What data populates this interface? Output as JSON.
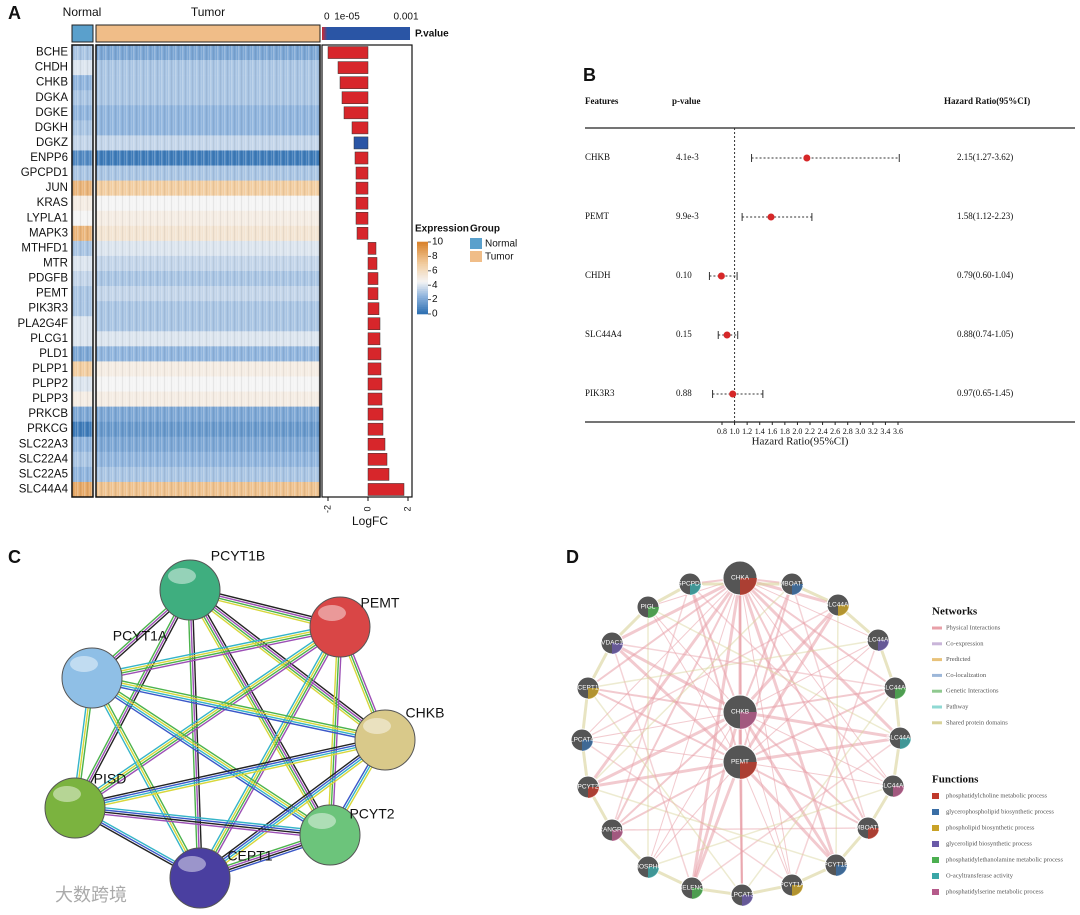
{
  "panel_a": {
    "letter": "A",
    "group_labels": [
      "Normal",
      "Tumor"
    ],
    "genes": [
      "BCHE",
      "CHDH",
      "CHKB",
      "DGKA",
      "DGKE",
      "DGKH",
      "DGKZ",
      "ENPP6",
      "GPCPD1",
      "JUN",
      "KRAS",
      "LYPLA1",
      "MAPK3",
      "MTHFD1",
      "MTR",
      "PDGFB",
      "PEMT",
      "PIK3R3",
      "PLA2G4F",
      "PLCG1",
      "PLD1",
      "PLPP1",
      "PLPP2",
      "PLPP3",
      "PRKCB",
      "PRKCG",
      "SLC22A3",
      "SLC22A4",
      "SLC22A5",
      "SLC44A4"
    ],
    "normal_expression": [
      3,
      4,
      2.5,
      3,
      2.5,
      3,
      3.5,
      1,
      3,
      8,
      5,
      4.5,
      8,
      3,
      4,
      3.5,
      3,
      3,
      4,
      4,
      2,
      7,
      4,
      5,
      2,
      0.5,
      2.5,
      3,
      2.5,
      8.5
    ],
    "tumor_expression": [
      2,
      3,
      3,
      3,
      2.5,
      2.5,
      3.5,
      0.5,
      3,
      7,
      4.5,
      5,
      5.5,
      4,
      3.5,
      3,
      3.5,
      3,
      3,
      4,
      2.5,
      5,
      4.5,
      5,
      2,
      1.5,
      2,
      2.5,
      3,
      7.5
    ],
    "logfc": [
      -2.0,
      -1.5,
      -1.4,
      -1.3,
      -1.2,
      -0.8,
      -0.7,
      -0.65,
      -0.6,
      -0.6,
      -0.6,
      -0.6,
      -0.55,
      0.4,
      0.45,
      0.5,
      0.5,
      0.55,
      0.6,
      0.6,
      0.65,
      0.65,
      0.7,
      0.7,
      0.75,
      0.75,
      0.85,
      0.95,
      1.05,
      1.8
    ],
    "bar_colors": [
      "#d7262b",
      "#d7262b",
      "#d7262b",
      "#d7262b",
      "#d7262b",
      "#d7262b",
      "#2a55a5",
      "#d7262b",
      "#d7262b",
      "#d7262b",
      "#d7262b",
      "#d7262b",
      "#d7262b",
      "#d7262b",
      "#d7262b",
      "#d7262b",
      "#d7262b",
      "#d7262b",
      "#d7262b",
      "#d7262b",
      "#d7262b",
      "#d7262b",
      "#d7262b",
      "#d7262b",
      "#d7262b",
      "#d7262b",
      "#d7262b",
      "#d7262b",
      "#d7262b",
      "#d7262b"
    ],
    "logfc_label": "LogFC",
    "logfc_lim": [
      -2.3,
      2.2
    ],
    "logfc_ticks": [
      -2,
      0,
      2
    ],
    "pvalue_title": "P.value",
    "pvalue_labels": [
      "0",
      "1e-05",
      "0.001"
    ],
    "expression_title": "Expression",
    "expression_lim": [
      0,
      10
    ],
    "expression_ticks": [
      0,
      2,
      4,
      6,
      8,
      10
    ],
    "colorscale": [
      [
        0,
        "#2a6db0"
      ],
      [
        2.5,
        "#8fb4dd"
      ],
      [
        4.5,
        "#f4f4f4"
      ],
      [
        7,
        "#f2cda0"
      ],
      [
        10,
        "#d9822b"
      ]
    ],
    "group_title": "Group",
    "group_colors": [
      "#5aa0cc",
      "#f0bd88"
    ]
  },
  "panel_b": {
    "letter": "B",
    "headers": [
      "Features",
      "p-value",
      "Hazard Ratio(95%CI)"
    ],
    "features": [
      "CHKB",
      "PEMT",
      "CHDH",
      "SLC44A4",
      "PIK3R3"
    ],
    "p_values": [
      "4.1e-3",
      "9.9e-3",
      "0.10",
      "0.15",
      "0.88"
    ],
    "hr": [
      2.15,
      1.58,
      0.79,
      0.88,
      0.97
    ],
    "lower": [
      1.27,
      1.12,
      0.6,
      0.74,
      0.65
    ],
    "upper": [
      3.62,
      2.23,
      1.04,
      1.05,
      1.45
    ],
    "hr_labels": [
      "2.15(1.27-3.62)",
      "1.58(1.12-2.23)",
      "0.79(0.60-1.04)",
      "0.88(0.74-1.05)",
      "0.97(0.65-1.45)"
    ],
    "xlabel": "Hazard Ratio(95%CI)",
    "xlim": [
      0.55,
      3.7
    ],
    "xticks": [
      0.8,
      {
        "value": 1,
        "label": "1.0"
      },
      1.2,
      1.4,
      1.6,
      1.8,
      {
        "value": 2,
        "label": "2.0"
      },
      2.2,
      2.4,
      2.6,
      2.8,
      {
        "value": 3,
        "label": "3.0"
      },
      3.2,
      3.4,
      3.6
    ],
    "point_color": "#d62728"
  },
  "panel_c": {
    "letter": "C",
    "nodes": [
      "PCYT1B",
      "PEMT",
      "PCYT1A",
      "CHKB",
      "PISD",
      "PCYT2",
      "CEPT1"
    ],
    "node_colors": [
      "#3fae7f",
      "#d94646",
      "#8fbfe6",
      "#d9c98a",
      "#7bb33f",
      "#6cc47b",
      "#4a3fa0"
    ]
  },
  "panel_d": {
    "letter": "D",
    "nodes": [
      "CHKA",
      "MBOAT1",
      "SLC44A5",
      "SLC44A3",
      "SLC44A1",
      "SLC44A4",
      "SLC44A2",
      "MBOAT2",
      "PCYT1B",
      "PCYT1A",
      "LPCAT3",
      "SELENOI",
      "PHOSPHO1",
      "RANGRF",
      "PCYT2",
      "LPCAT4",
      "CEPT1",
      "VDAC1",
      "PIGL",
      "GPCPD1",
      "CHKB",
      "PEMT"
    ],
    "networks_title": "Networks",
    "networks": [
      "Physical Interactions",
      "Co-expression",
      "Predicted",
      "Co-localization",
      "Genetic Interactions",
      "Pathway",
      "Shared protein domains"
    ],
    "network_colors": [
      "#e8a0a8",
      "#c9b5d9",
      "#e8c27a",
      "#9db7d9",
      "#8fc98f",
      "#8fd9d3",
      "#d9d39a"
    ],
    "functions_title": "Functions",
    "functions": [
      "phosphatidylcholine metabolic process",
      "glycerophospholipid biosynthetic process",
      "phospholipid biosynthetic process",
      "glycerolipid biosynthetic process",
      "phosphatidylethanolamine metabolic process",
      "O-acyltransferase activity",
      "phosphatidylserine metabolic process"
    ],
    "function_colors": [
      "#c0392b",
      "#3a6ea5",
      "#c9a227",
      "#6a5aa8",
      "#4caf50",
      "#3aa6a6",
      "#b55a8a"
    ]
  },
  "watermark": "大数跨境"
}
